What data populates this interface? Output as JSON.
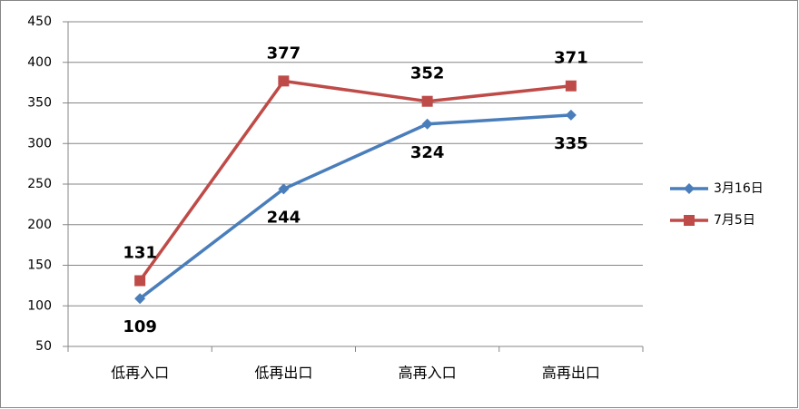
{
  "chart_data": {
    "type": "line",
    "categories": [
      "低再入口",
      "低再出口",
      "高再入口",
      "高再出口"
    ],
    "series": [
      {
        "name": "3月16日",
        "color": "#4a7ebb",
        "marker": "diamond",
        "label_position": "below",
        "values": [
          109,
          244,
          324,
          335
        ]
      },
      {
        "name": "7月5日",
        "color": "#be4b48",
        "marker": "square",
        "label_position": "above",
        "values": [
          131,
          377,
          352,
          371
        ]
      }
    ],
    "ylim": [
      50,
      450
    ],
    "yticks": [
      50,
      100,
      150,
      200,
      250,
      300,
      350,
      400,
      450
    ],
    "grid": true,
    "legend": "right"
  }
}
